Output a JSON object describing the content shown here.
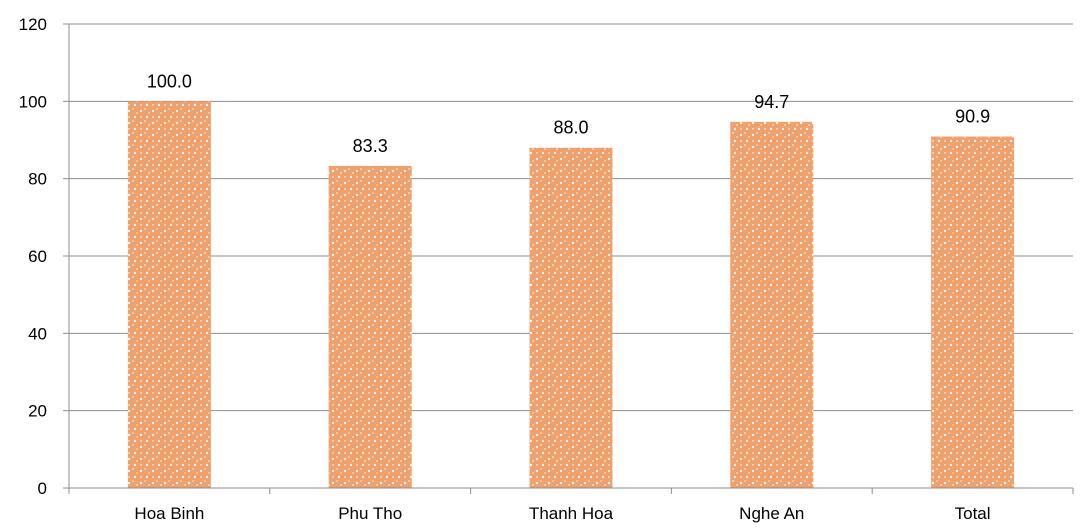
{
  "chart_data": {
    "type": "bar",
    "categories": [
      "Hoa Binh",
      "Phu Tho",
      "Thanh Hoa",
      "Nghe An",
      "Total"
    ],
    "values": [
      100.0,
      83.3,
      88.0,
      94.7,
      90.9
    ],
    "data_labels": [
      "100.0",
      "83.3",
      "88.0",
      "94.7",
      "90.9"
    ],
    "y_ticks": [
      "0",
      "20",
      "40",
      "60",
      "80",
      "100",
      "120"
    ],
    "ylim": [
      0,
      120
    ],
    "grid": true,
    "bar_fill": "#f4a460",
    "bar_pattern": "dotted",
    "title": "",
    "xlabel": "",
    "ylabel": ""
  }
}
